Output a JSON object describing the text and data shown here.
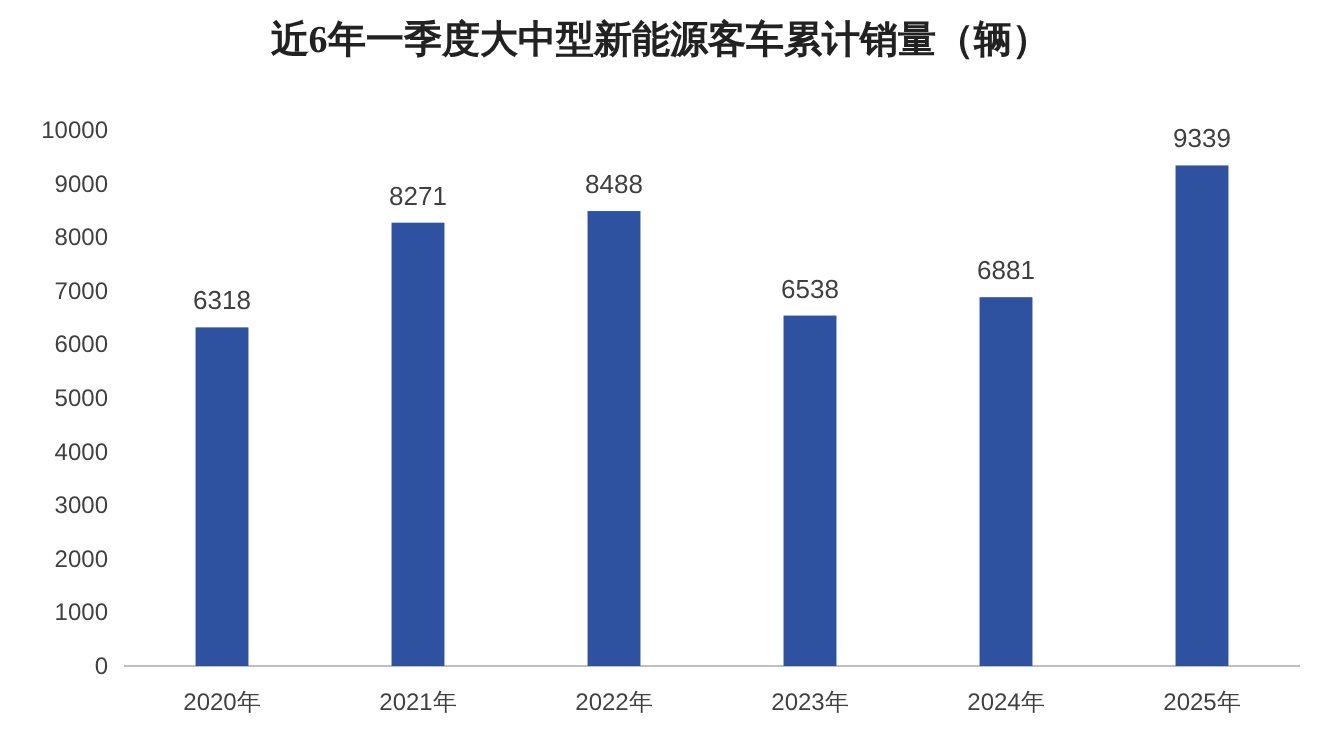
{
  "chart_data": {
    "type": "bar",
    "title": "近6年一季度大中型新能源客车累计销量（辆）",
    "categories": [
      "2020年",
      "2021年",
      "2022年",
      "2023年",
      "2024年",
      "2025年"
    ],
    "values": [
      6318,
      8271,
      8488,
      6538,
      6881,
      9339
    ],
    "color": "#2f52a0",
    "ylim": [
      0,
      10000
    ],
    "yticks": [
      0,
      1000,
      2000,
      3000,
      4000,
      5000,
      6000,
      7000,
      8000,
      9000,
      10000
    ],
    "grid": false,
    "data_labels": true
  }
}
